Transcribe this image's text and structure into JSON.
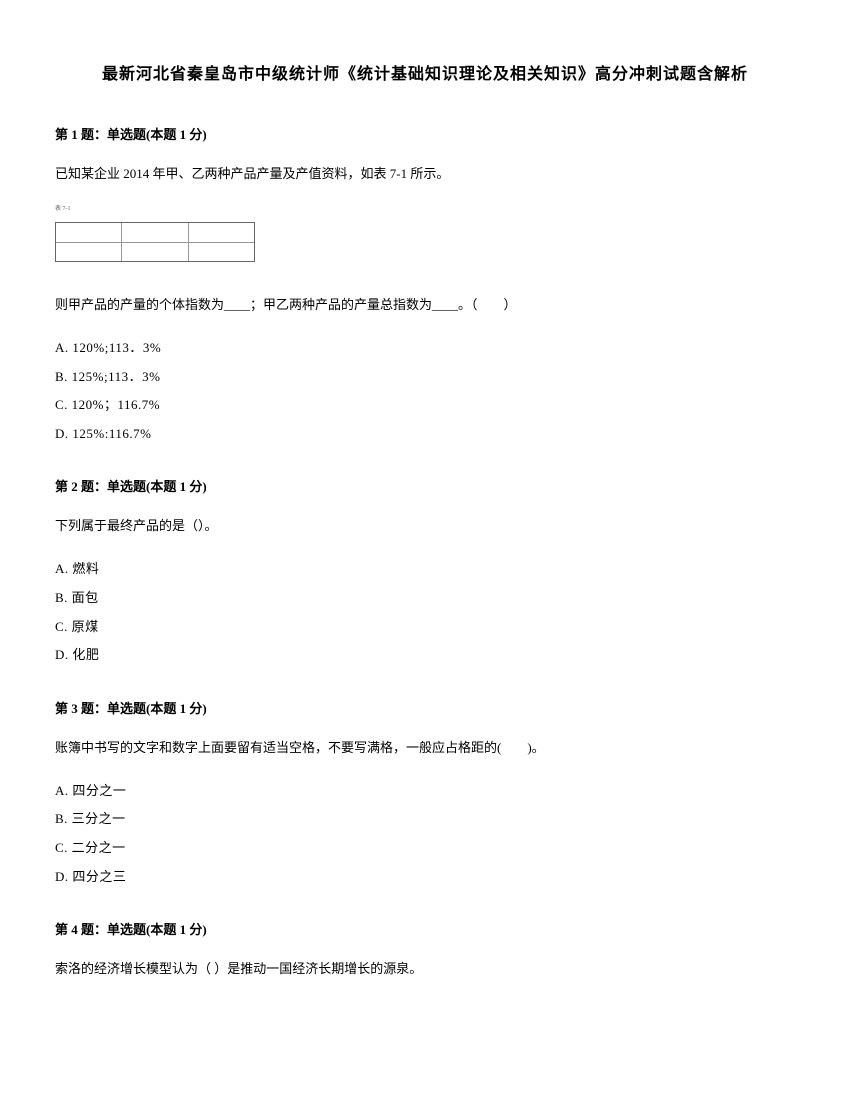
{
  "title": "最新河北省秦皇岛市中级统计师《统计基础知识理论及相关知识》高分冲刺试题含解析",
  "questions": [
    {
      "number": "第 1 题：",
      "type": "单选题",
      "points": "(本题 1 分)",
      "text1": "已知某企业 2014 年甲、乙两种产品产量及产值资料，如表 7-1 所示。",
      "hasTable": true,
      "tableLabel": "表 7-1",
      "text2": "则甲产品的产量的个体指数为____；甲乙两种产品的产量总指数为____。（　　）",
      "options": [
        "A. 120%;113．3%",
        "B. 125%;113．3%",
        "C. 120%；116.7%",
        "D. 125%:116.7%"
      ]
    },
    {
      "number": "第 2 题：",
      "type": "单选题",
      "points": "(本题 1 分)",
      "text1": "下列属于最终产品的是（）。",
      "hasTable": false,
      "options": [
        "A. 燃料",
        "B. 面包",
        "C. 原煤",
        "D. 化肥"
      ]
    },
    {
      "number": "第 3 题：",
      "type": "单选题",
      "points": "(本题 1 分)",
      "text1": "账簿中书写的文字和数字上面要留有适当空格，不要写满格，一般应占格距的(　　)。",
      "hasTable": false,
      "options": [
        "A. 四分之一",
        "B. 三分之一",
        "C. 二分之一",
        "D. 四分之三"
      ]
    },
    {
      "number": "第 4 题：",
      "type": "单选题",
      "points": "(本题 1 分)",
      "text1": "索洛的经济增长模型认为（ ）是推动一国经济长期增长的源泉。",
      "hasTable": false,
      "options": []
    }
  ]
}
